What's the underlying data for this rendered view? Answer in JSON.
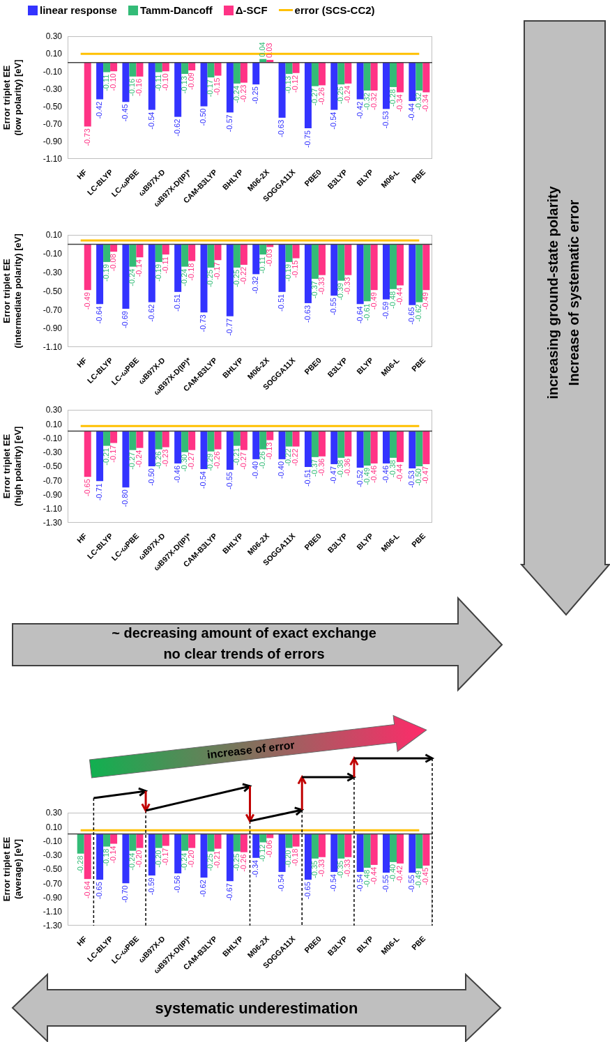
{
  "chart_data": [
    {
      "type": "bar",
      "ylabel": "Error triplet EE\n(low polarity) [eV]",
      "legend": "top",
      "annotations": [
        "increasing ground-state polarity",
        "Increase of systematic error"
      ],
      "categories": [
        "HF",
        "LC-BLYP",
        "LC-ωPBE",
        "ωB97X-D",
        "ωB97X-D(IP)*",
        "CAM-B3LYP",
        "BHLYP",
        "M06-2X",
        "SOGGA11X",
        "PBE0",
        "B3LYP",
        "BLYP",
        "M06-L",
        "PBE"
      ],
      "ylim": [
        -1.1,
        0.3
      ],
      "yticks": [
        {
          "value": 0.3,
          "label": "0.30"
        },
        {
          "value": 0.1,
          "label": "0.10"
        },
        {
          "value": -0.1,
          "label": "-0.10"
        },
        {
          "value": -0.3,
          "label": "-0.30"
        },
        {
          "value": -0.5,
          "label": "-0.50"
        },
        {
          "value": -0.7,
          "label": "-0.70"
        },
        {
          "value": -0.9,
          "label": "-0.90"
        },
        {
          "value": -1.1,
          "label": "-1.10"
        }
      ],
      "series": [
        {
          "name": "linear response",
          "color": "#3333ff",
          "values": [
            null,
            -0.42,
            -0.45,
            -0.54,
            -0.62,
            -0.5,
            -0.57,
            -0.25,
            -0.63,
            -0.75,
            -0.54,
            -0.42,
            -0.53,
            -0.44
          ],
          "value_labels": [
            null,
            "-0.42",
            "-0.45",
            "-0.54",
            "-0.62",
            "-0.50",
            "-0.57",
            "-0.25",
            "-0.63",
            "-0.75",
            "-0.54",
            "-0.42",
            "-0.53",
            "-0.44"
          ]
        },
        {
          "name": "Tamm-Dancoff",
          "color": "#33bb77",
          "values": [
            null,
            -0.11,
            -0.16,
            -0.11,
            -0.13,
            -0.17,
            -0.24,
            0.04,
            -0.13,
            -0.27,
            -0.25,
            -0.32,
            -0.28,
            -0.32
          ],
          "value_labels": [
            null,
            "-0.11",
            "-0.16",
            "-0.11",
            "-0.13",
            "-0.17",
            "-0.24",
            "0.04",
            "-0.13",
            "-0.27",
            "-0.25",
            "-0.32",
            "-0.28",
            "-0.32"
          ]
        },
        {
          "name": "Δ-SCF",
          "color": "#ff3385",
          "values": [
            -0.73,
            -0.1,
            -0.16,
            -0.1,
            -0.09,
            -0.15,
            -0.23,
            0.03,
            -0.12,
            -0.26,
            -0.24,
            -0.32,
            -0.34,
            -0.34
          ],
          "value_labels": [
            "-0.73",
            "-0.10",
            "-0.16",
            "-0.10",
            "-0.09",
            "-0.15",
            "-0.23",
            "0.03",
            "-0.12",
            "-0.26",
            "-0.24",
            "-0.32",
            "-0.34",
            "-0.34"
          ]
        },
        {
          "name": "error (SCS-CC2)",
          "type": "line",
          "color": "#ffc000",
          "values": [
            0.1,
            0.1,
            0.1,
            0.1,
            0.1,
            0.1,
            0.1,
            0.1,
            0.1,
            0.1,
            0.1,
            0.1,
            0.1,
            0.1
          ]
        }
      ]
    },
    {
      "type": "bar",
      "ylabel": "Error triplet EE\n(intermediate polarity) [eV]",
      "categories": [
        "HF",
        "LC-BLYP",
        "LC-ωPBE",
        "ωB97X-D",
        "ωB97X-D(IP)*",
        "CAM-B3LYP",
        "BHLYP",
        "M06-2X",
        "SOGGA11X",
        "PBE0",
        "B3LYP",
        "BLYP",
        "M06-L",
        "PBE"
      ],
      "ylim": [
        -1.1,
        0.1
      ],
      "yticks": [
        {
          "value": 0.1,
          "label": "0.10"
        },
        {
          "value": -0.1,
          "label": "-0.10"
        },
        {
          "value": -0.3,
          "label": "-0.30"
        },
        {
          "value": -0.5,
          "label": "-0.50"
        },
        {
          "value": -0.7,
          "label": "-0.70"
        },
        {
          "value": -0.9,
          "label": "-0.90"
        },
        {
          "value": -1.1,
          "label": "-1.10"
        }
      ],
      "series": [
        {
          "color": "#3333ff",
          "values": [
            null,
            -0.64,
            -0.69,
            -0.62,
            -0.51,
            -0.73,
            -0.77,
            -0.32,
            -0.51,
            -0.63,
            -0.55,
            -0.64,
            -0.59,
            -0.65
          ],
          "value_labels": [
            null,
            "-0.64",
            "-0.69",
            "-0.62",
            "-0.51",
            "-0.73",
            "-0.77",
            "-0.32",
            "-0.51",
            "-0.63",
            "-0.55",
            "-0.64",
            "-0.59",
            "-0.65"
          ]
        },
        {
          "color": "#33bb77",
          "values": [
            null,
            -0.19,
            -0.24,
            -0.19,
            -0.24,
            -0.25,
            -0.25,
            -0.11,
            -0.19,
            -0.37,
            -0.39,
            -0.61,
            -0.48,
            -0.62
          ],
          "value_labels": [
            null,
            "-0.19",
            "-0.24",
            "-0.19",
            "-0.24",
            "-0.25",
            "-0.25",
            "-0.11",
            "-0.19",
            "-0.37",
            "-0.39",
            "-0.61",
            "-0.48",
            "-0.62"
          ]
        },
        {
          "color": "#ff3385",
          "values": [
            -0.49,
            -0.08,
            -0.14,
            -0.11,
            -0.18,
            -0.17,
            -0.22,
            -0.03,
            -0.15,
            -0.33,
            -0.33,
            -0.49,
            -0.44,
            -0.49
          ],
          "value_labels": [
            "-0.49",
            "-0.08",
            "-0.14",
            "-0.11",
            "-0.18",
            "-0.17",
            "-0.22",
            "-0.03",
            "-0.15",
            "-0.33",
            "-0.33",
            "-0.49",
            "-0.44",
            "-0.49"
          ]
        },
        {
          "type": "line",
          "color": "#ffc000",
          "values": [
            0.04,
            0.04,
            0.04,
            0.04,
            0.04,
            0.04,
            0.04,
            0.04,
            0.04,
            0.04,
            0.04,
            0.04,
            0.04,
            0.04
          ]
        }
      ]
    },
    {
      "type": "bar",
      "ylabel": "Error triplet EE\n(high polarity) [eV]",
      "annotations": [
        "~ decreasing amount of exact exchange",
        "no clear trends of errors"
      ],
      "categories": [
        "HF",
        "LC-BLYP",
        "LC-ωPBE",
        "ωB97X-D",
        "ωB97X-D(IP)*",
        "CAM-B3LYP",
        "BHLYP",
        "M06-2X",
        "SOGGA11X",
        "PBE0",
        "B3LYP",
        "BLYP",
        "M06-L",
        "PBE"
      ],
      "ylim": [
        -1.3,
        0.3
      ],
      "yticks": [
        {
          "value": 0.3,
          "label": "0.30"
        },
        {
          "value": 0.1,
          "label": "0.10"
        },
        {
          "value": -0.1,
          "label": "-0.10"
        },
        {
          "value": -0.3,
          "label": "-0.30"
        },
        {
          "value": -0.5,
          "label": "-0.50"
        },
        {
          "value": -0.7,
          "label": "-0.70"
        },
        {
          "value": -0.9,
          "label": "-0.90"
        },
        {
          "value": -1.1,
          "label": "-1.10"
        },
        {
          "value": -1.3,
          "label": "-1.30"
        }
      ],
      "series": [
        {
          "color": "#3333ff",
          "values": [
            null,
            -0.71,
            -0.8,
            -0.5,
            -0.46,
            -0.54,
            -0.55,
            -0.4,
            -0.4,
            -0.51,
            -0.47,
            -0.52,
            -0.46,
            -0.53
          ],
          "value_labels": [
            null,
            "-0.71",
            "-0.80",
            "-0.50",
            "-0.46",
            "-0.54",
            "-0.55",
            "-0.40",
            "-0.40",
            "-0.51",
            "-0.47",
            "-0.52",
            "-0.46",
            "-0.53"
          ]
        },
        {
          "color": "#33bb77",
          "values": [
            null,
            -0.21,
            -0.27,
            -0.26,
            -0.3,
            -0.29,
            -0.21,
            -0.26,
            -0.22,
            -0.37,
            -0.38,
            -0.49,
            -0.38,
            -0.5
          ],
          "value_labels": [
            null,
            "-0.21",
            "-0.27",
            "-0.26",
            "-0.30",
            "-0.29",
            "-0.21",
            "-0.26",
            "-0.22",
            "-0.37",
            "-0.38",
            "-0.49",
            "-0.38",
            "-0.50"
          ]
        },
        {
          "color": "#ff3385",
          "values": [
            -0.65,
            -0.17,
            -0.24,
            -0.23,
            -0.27,
            -0.26,
            -0.27,
            -0.13,
            -0.22,
            -0.36,
            -0.36,
            -0.46,
            -0.44,
            -0.47
          ],
          "value_labels": [
            "-0.65",
            "-0.17",
            "-0.24",
            "-0.23",
            "-0.27",
            "-0.26",
            "-0.27",
            "-0.13",
            "-0.22",
            "-0.36",
            "-0.36",
            "-0.46",
            "-0.44",
            "-0.47"
          ]
        },
        {
          "type": "line",
          "color": "#ffc000",
          "values": [
            0.07,
            0.07,
            0.07,
            0.07,
            0.07,
            0.07,
            0.07,
            0.07,
            0.07,
            0.07,
            0.07,
            0.07,
            0.07,
            0.07
          ]
        }
      ]
    },
    {
      "type": "bar",
      "ylabel": "Error triplet EE\n(average) [eV]",
      "annotations": [
        "increase of error",
        "systematic underestimation"
      ],
      "categories": [
        "HF",
        "LC-BLYP",
        "LC-ωPBE",
        "ωB97X-D",
        "ωB97X-D(IP)*",
        "CAM-B3LYP",
        "BHLYP",
        "M06-2X",
        "SOGGA11X",
        "PBE0",
        "B3LYP",
        "BLYP",
        "M06-L",
        "PBE"
      ],
      "ylim": [
        -1.3,
        0.3
      ],
      "yticks": [
        {
          "value": 0.3,
          "label": "0.30"
        },
        {
          "value": 0.1,
          "label": "0.10"
        },
        {
          "value": -0.1,
          "label": "-0.10"
        },
        {
          "value": -0.3,
          "label": "-0.30"
        },
        {
          "value": -0.5,
          "label": "-0.50"
        },
        {
          "value": -0.7,
          "label": "-0.70"
        },
        {
          "value": -0.9,
          "label": "-0.90"
        },
        {
          "value": -1.1,
          "label": "-1.10"
        },
        {
          "value": -1.3,
          "label": "-1.30"
        }
      ],
      "series": [
        {
          "color": "#3333ff",
          "values": [
            null,
            -0.65,
            -0.7,
            -0.59,
            -0.56,
            -0.62,
            -0.67,
            -0.34,
            -0.54,
            -0.65,
            -0.54,
            -0.54,
            -0.55,
            -0.55
          ],
          "value_labels": [
            null,
            "-0.65",
            "-0.70",
            "-0.59",
            "-0.56",
            "-0.62",
            "-0.67",
            "-0.34",
            "-0.54",
            "-0.65",
            "-0.54",
            "-0.54",
            "-0.55",
            "-0.55"
          ]
        },
        {
          "color": "#33bb77",
          "values": [
            -0.28,
            -0.18,
            -0.24,
            -0.2,
            -0.24,
            -0.25,
            -0.25,
            -0.12,
            -0.2,
            -0.35,
            -0.35,
            -0.48,
            -0.4,
            -0.49
          ],
          "value_labels": [
            "-0.28",
            "-0.18",
            "-0.24",
            "-0.20",
            "-0.24",
            "-0.25",
            "-0.25",
            "-0.12",
            "-0.20",
            "-0.35",
            "-0.35",
            "-0.48",
            "-0.40",
            "-0.49"
          ]
        },
        {
          "color": "#ff3385",
          "values": [
            -0.64,
            -0.14,
            -0.2,
            -0.17,
            -0.2,
            -0.21,
            -0.26,
            -0.06,
            -0.18,
            -0.33,
            -0.33,
            -0.44,
            -0.42,
            -0.45
          ],
          "value_labels": [
            "-0.64",
            "-0.14",
            "-0.20",
            "-0.17",
            "-0.20",
            "-0.21",
            "-0.26",
            "-0.06",
            "-0.18",
            "-0.33",
            "-0.33",
            "-0.44",
            "-0.42",
            "-0.45"
          ]
        },
        {
          "type": "line",
          "color": "#ffc000",
          "values": [
            0.05,
            0.05,
            0.05,
            0.05,
            0.05,
            0.05,
            0.05,
            0.05,
            0.05,
            0.05,
            0.05,
            0.05,
            0.05,
            0.05
          ]
        }
      ]
    }
  ]
}
